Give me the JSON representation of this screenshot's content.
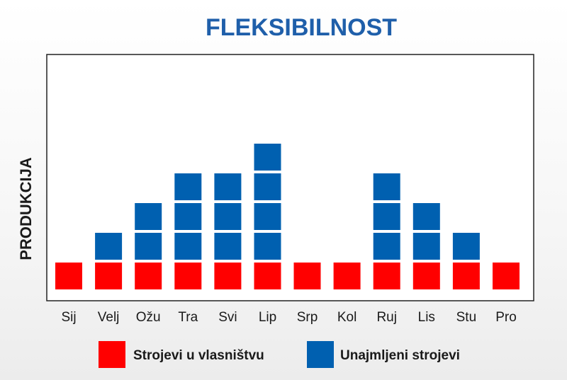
{
  "chart_data": {
    "type": "bar",
    "stacked": true,
    "title": "FLEKSIBILNOST",
    "ylabel": "PRODUKCIJA",
    "xlabel": "",
    "categories": [
      "Sij",
      "Velj",
      "Ožu",
      "Tra",
      "Svi",
      "Lip",
      "Srp",
      "Kol",
      "Ruj",
      "Lis",
      "Stu",
      "Pro"
    ],
    "series": [
      {
        "name": "Strojevi u vlasništvu",
        "color": "#ff0000",
        "values": [
          1,
          1,
          1,
          1,
          1,
          1,
          1,
          1,
          1,
          1,
          1,
          1
        ]
      },
      {
        "name": "Unajmljeni strojevi",
        "color": "#0060b0",
        "values": [
          0,
          1,
          2,
          3,
          3,
          4,
          0,
          0,
          3,
          2,
          1,
          0
        ]
      }
    ],
    "ylim": [
      0,
      5
    ],
    "grid": false,
    "legend_position": "bottom",
    "title_color": "#1f5faa"
  }
}
